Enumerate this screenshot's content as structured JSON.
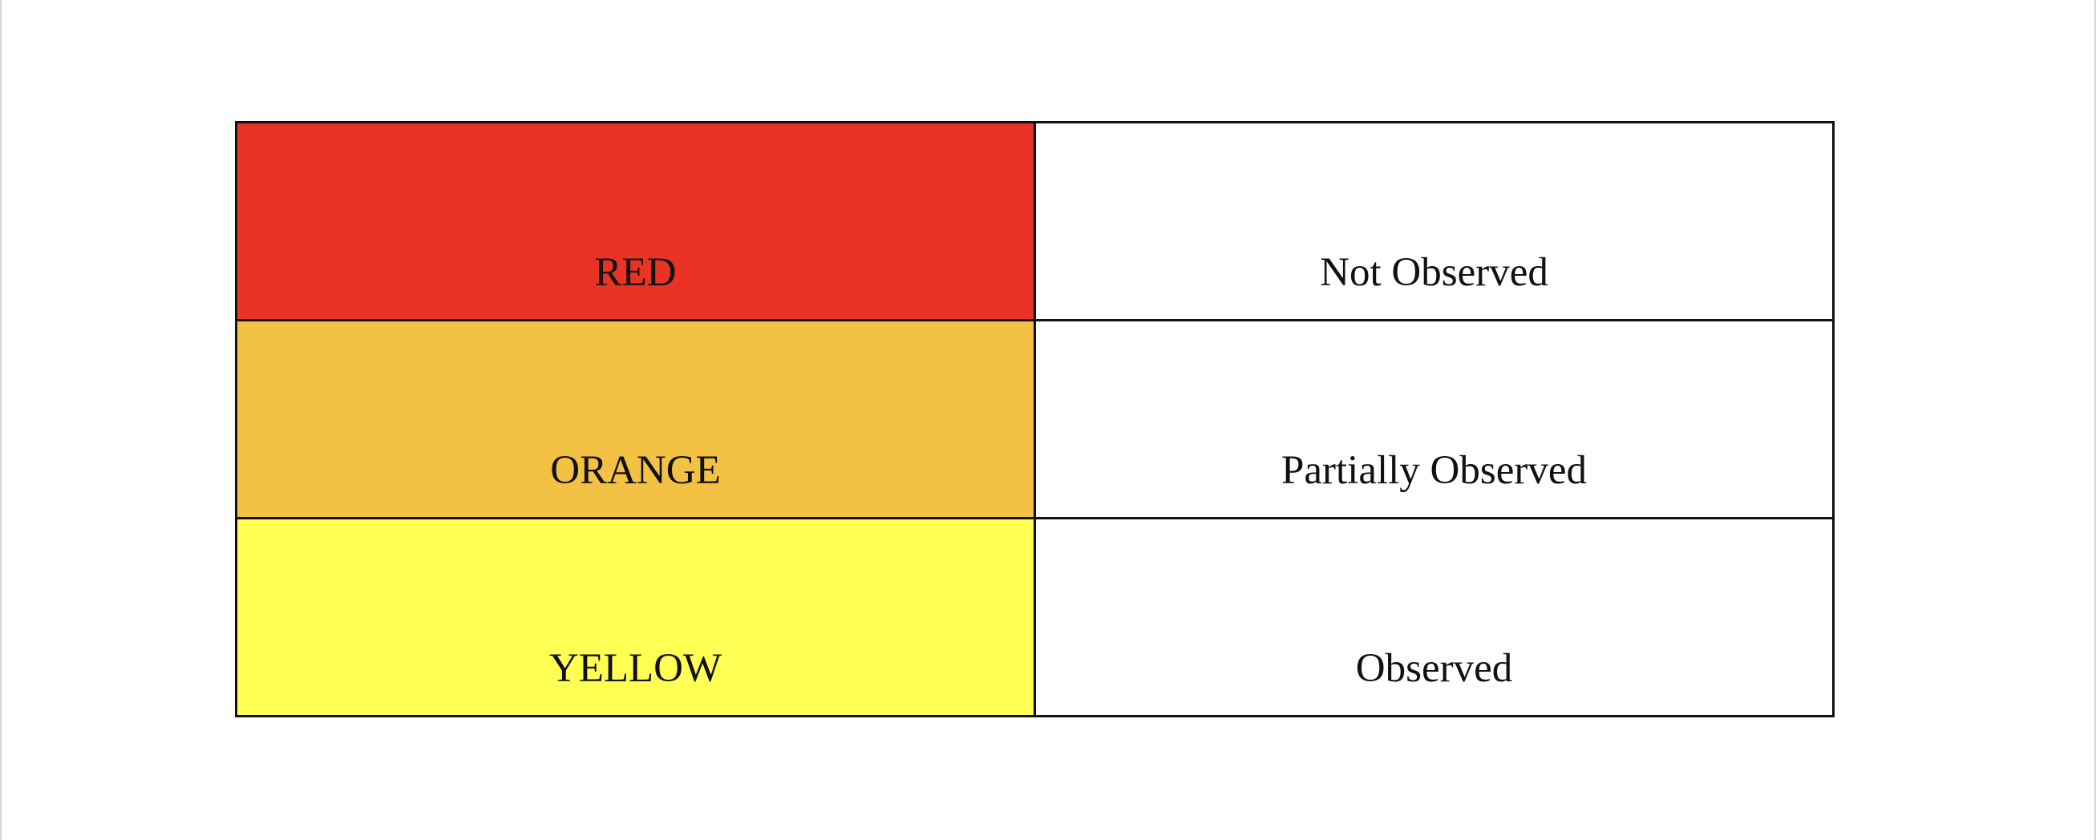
{
  "legend": {
    "rows": [
      {
        "color_label": "RED",
        "status": "Not Observed",
        "color_hex": "#EA3324"
      },
      {
        "color_label": "ORANGE",
        "status": "Partially Observed",
        "color_hex": "#F3C143"
      },
      {
        "color_label": "YELLOW",
        "status": "Observed",
        "color_hex": "#FFFF54"
      }
    ]
  }
}
